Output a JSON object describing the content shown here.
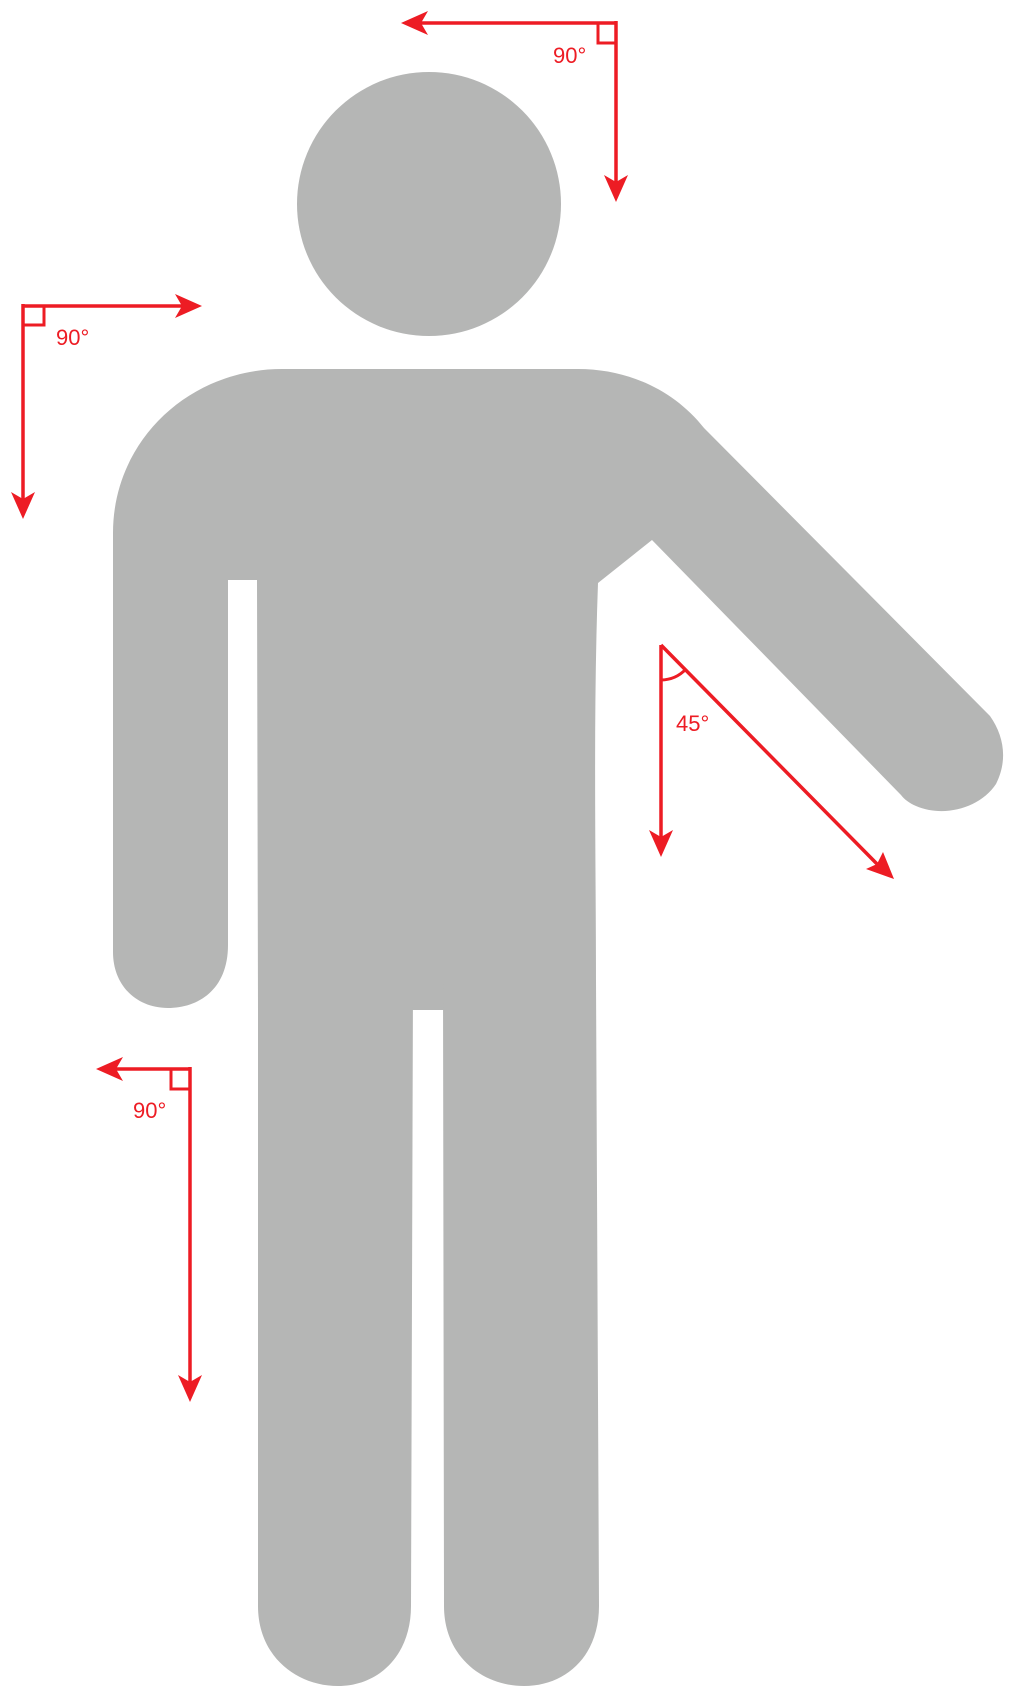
{
  "colors": {
    "figure": "#b5b6b5",
    "arrows": "#ed1c24",
    "background": "#ffffff"
  },
  "annotations": {
    "head_angle": "90°",
    "shoulder_angle": "90°",
    "arm_angle": "45°",
    "hand_angle": "90°"
  }
}
